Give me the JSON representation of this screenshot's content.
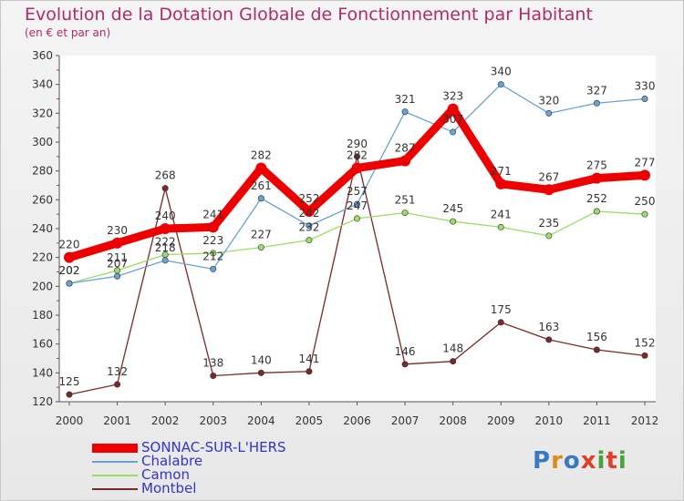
{
  "title": "Evolution de la Dotation Globale de Fonctionnement par Habitant",
  "subtitle": "(en € et par an)",
  "logo": "Proxiti",
  "chart_data": {
    "type": "line",
    "title": "Evolution de la Dotation Globale de Fonctionnement par Habitant",
    "subtitle": "(en € et par an)",
    "xlabel": "",
    "ylabel": "",
    "ylim": [
      120,
      360
    ],
    "yticks": [
      120,
      140,
      160,
      180,
      200,
      220,
      240,
      260,
      280,
      300,
      320,
      340,
      360
    ],
    "grid": false,
    "legend": "bottom-left",
    "x": [
      "2000",
      "2001",
      "2002",
      "2003",
      "2004",
      "2005",
      "2006",
      "2007",
      "2008",
      "2009",
      "2010",
      "2011",
      "2012"
    ],
    "series": [
      {
        "name": "Montbel",
        "color": "#7a2828",
        "values": [
          125,
          132,
          268,
          138,
          140,
          141,
          290,
          146,
          148,
          175,
          163,
          156,
          152
        ]
      },
      {
        "name": "Camon",
        "color": "#99dd66",
        "values": [
          202,
          211,
          222,
          223,
          227,
          232,
          247,
          251,
          245,
          241,
          235,
          252,
          250
        ]
      },
      {
        "name": "Chalabre",
        "color": "#6aa2d4",
        "values": [
          202,
          207,
          218,
          212,
          261,
          242,
          257,
          321,
          307,
          340,
          320,
          327,
          330
        ]
      },
      {
        "name": "SONNAC-SUR-L'HERS",
        "color": "#ee0000",
        "values": [
          220,
          230,
          240,
          241,
          282,
          252,
          282,
          287,
          323,
          271,
          267,
          275,
          277
        ]
      }
    ]
  }
}
